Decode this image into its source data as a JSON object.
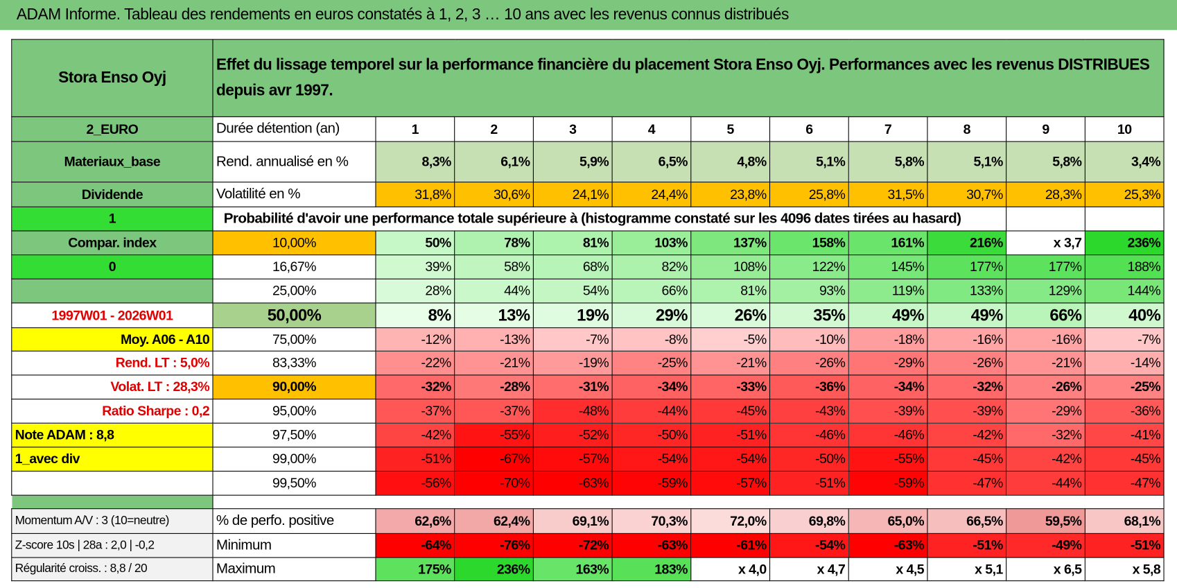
{
  "header": {
    "title": "ADAM Informe. Tableau des rendements en euros constatés à 1, 2, 3 … 10 ans avec les revenus connus distribués"
  },
  "table": {
    "corner": "Stora Enso Oyj",
    "description": "Effet du lissage temporel sur la performance financière du placement Stora Enso Oyj. Performances avec les revenus DISTRIBUES depuis avr 1997.",
    "rows": [
      {
        "left": "2_EURO",
        "label": "Durée détention (an)",
        "cells": [
          1,
          2,
          3,
          4,
          5,
          6,
          7,
          8,
          9,
          10
        ]
      },
      {
        "left": "Materiaux_base",
        "label": "Rend. annualisé en %",
        "cells": [
          "8,3%",
          "6,1%",
          "5,9%",
          "6,5%",
          "4,8%",
          "5,1%",
          "5,8%",
          "5,1%",
          "5,8%",
          "3,4%"
        ]
      },
      {
        "left": "Dividende",
        "label": "Volatilité en %",
        "cells": [
          "31,8%",
          "30,6%",
          "24,1%",
          "24,4%",
          "23,8%",
          "25,8%",
          "31,5%",
          "30,7%",
          "28,3%",
          "25,3%"
        ]
      },
      {
        "left": "1",
        "label": "Probabilité d'avoir une performance totale supérieure à (histogramme constaté sur les 4096 dates tirées au hasard)"
      },
      {
        "left": "Compar. index",
        "label": "10,00%",
        "cells": [
          "50%",
          "78%",
          "81%",
          "103%",
          "137%",
          "158%",
          "161%",
          "216%",
          "x 3,7",
          "236%"
        ]
      },
      {
        "left": "0",
        "label": "16,67%",
        "cells": [
          "39%",
          "58%",
          "68%",
          "82%",
          "108%",
          "122%",
          "145%",
          "177%",
          "177%",
          "188%"
        ]
      },
      {
        "label": "25,00%",
        "cells": [
          "28%",
          "44%",
          "54%",
          "66%",
          "81%",
          "93%",
          "119%",
          "133%",
          "129%",
          "144%"
        ]
      },
      {
        "left": "1997W01 - 2026W01",
        "label": "50,00%",
        "cells": [
          "8%",
          "13%",
          "19%",
          "29%",
          "26%",
          "35%",
          "49%",
          "49%",
          "66%",
          "40%"
        ]
      },
      {
        "left": "Moy. A06 - A10",
        "label": "75,00%",
        "cells": [
          "-12%",
          "-13%",
          "-7%",
          "-8%",
          "-5%",
          "-10%",
          "-18%",
          "-16%",
          "-16%",
          "-7%"
        ]
      },
      {
        "left": "Rend. LT :   5,0%",
        "label": "83,33%",
        "cells": [
          "-22%",
          "-21%",
          "-19%",
          "-25%",
          "-21%",
          "-26%",
          "-29%",
          "-26%",
          "-21%",
          "-14%"
        ]
      },
      {
        "left": "Volat. LT :   28,3%",
        "label": "90,00%",
        "cells": [
          "-32%",
          "-28%",
          "-31%",
          "-34%",
          "-33%",
          "-36%",
          "-34%",
          "-32%",
          "-26%",
          "-25%"
        ]
      },
      {
        "left": "Ratio Sharpe :    0,2",
        "label": "95,00%",
        "cells": [
          "-37%",
          "-37%",
          "-48%",
          "-44%",
          "-45%",
          "-43%",
          "-39%",
          "-39%",
          "-29%",
          "-36%"
        ]
      },
      {
        "left": "Note ADAM : 8,8",
        "label": "97,50%",
        "cells": [
          "-42%",
          "-55%",
          "-52%",
          "-50%",
          "-51%",
          "-46%",
          "-46%",
          "-42%",
          "-32%",
          "-41%"
        ]
      },
      {
        "left": "1_avec div",
        "label": "99,00%",
        "cells": [
          "-51%",
          "-67%",
          "-57%",
          "-54%",
          "-54%",
          "-50%",
          "-55%",
          "-45%",
          "-42%",
          "-45%"
        ]
      },
      {
        "label": "99,50%",
        "cells": [
          "-56%",
          "-70%",
          "-63%",
          "-59%",
          "-57%",
          "-51%",
          "-59%",
          "-47%",
          "-44%",
          "-47%"
        ]
      },
      {
        "left": "Momentum A/V : 3 (10=neutre)",
        "label": "% de perfo. positive",
        "cells": [
          "62,6%",
          "62,4%",
          "69,1%",
          "70,3%",
          "72,0%",
          "69,8%",
          "65,0%",
          "66,5%",
          "59,5%",
          "68,1%"
        ]
      },
      {
        "left": "Z-score 10s | 28a : 2,0 | -0,2",
        "label": "Minimum",
        "cells": [
          "-64%",
          "-76%",
          "-72%",
          "-63%",
          "-61%",
          "-54%",
          "-63%",
          "-51%",
          "-49%",
          "-51%"
        ]
      },
      {
        "left": "Régularité croiss. : 8,8 / 20",
        "label": "Maximum",
        "cells": [
          "175%",
          "236%",
          "163%",
          "183%",
          "x 4,0",
          "x 4,7",
          "x 4,5",
          "x 5,1",
          "x 6,5",
          "x 5,8"
        ]
      }
    ]
  }
}
